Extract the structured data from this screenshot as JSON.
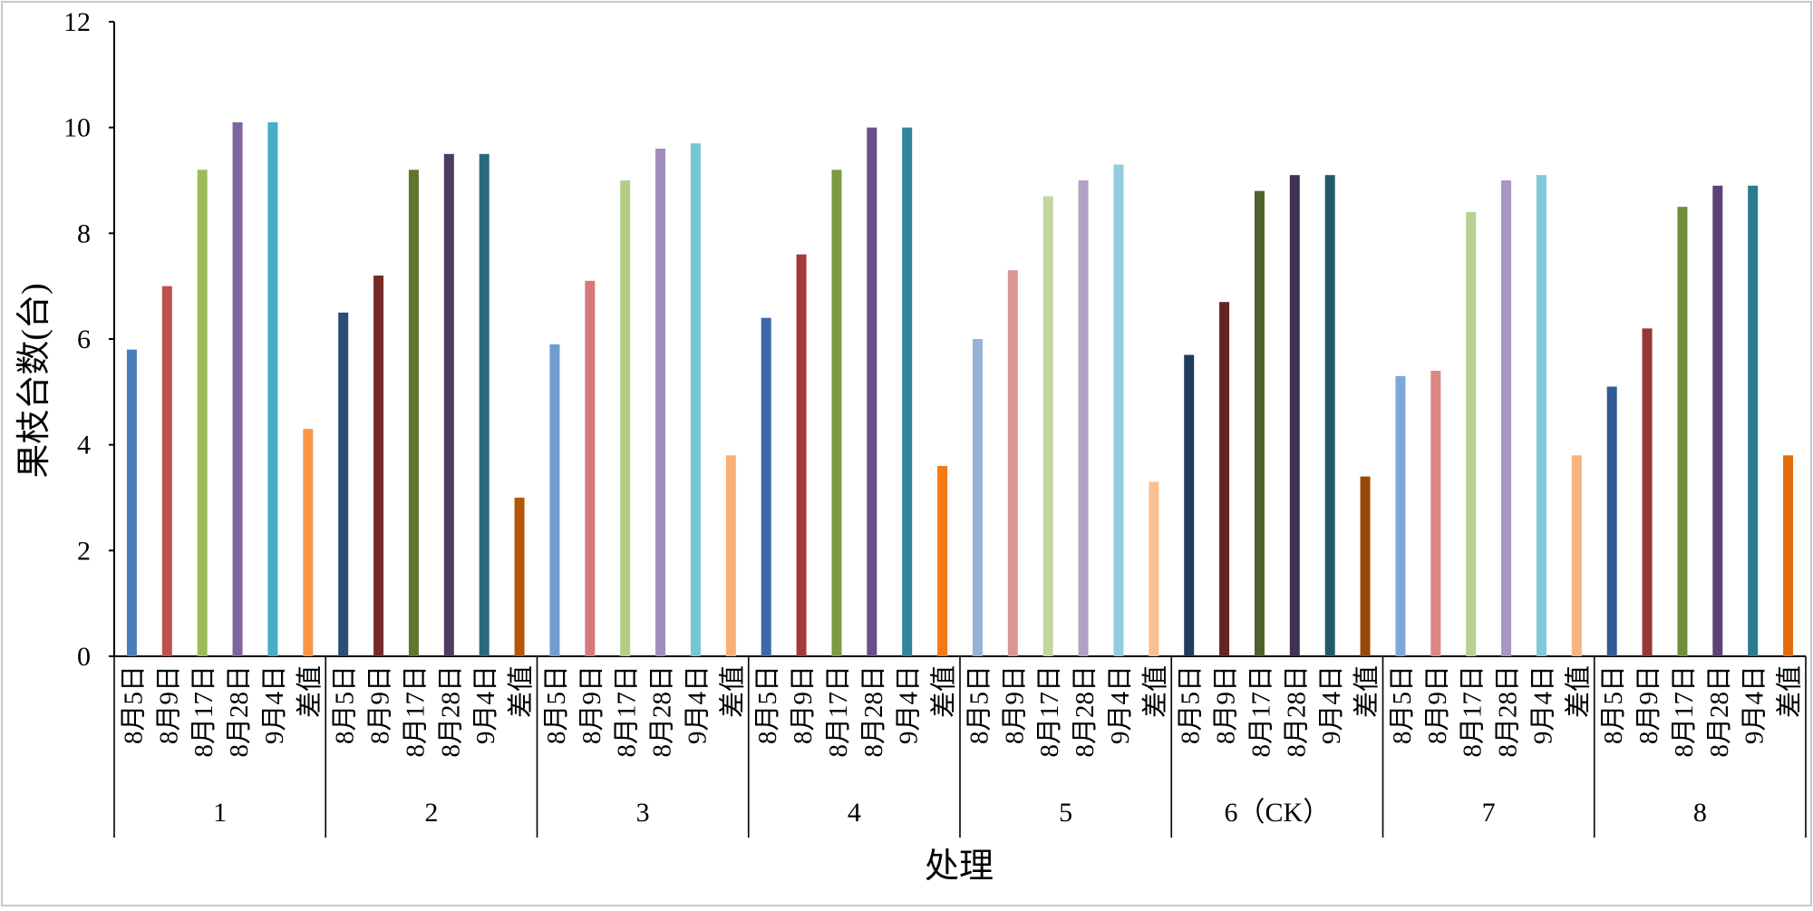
{
  "chart_data": {
    "type": "bar",
    "title": "",
    "xlabel": "处理",
    "ylabel": "果枝台数(台)",
    "ylim": [
      0,
      12
    ],
    "yticks": [
      0,
      2,
      4,
      6,
      8,
      10,
      12
    ],
    "grid": false,
    "legend": "none",
    "categories": [
      "8月5日",
      "8月9日",
      "8月17日",
      "8月28日",
      "9月4日",
      "差值"
    ],
    "groups": [
      {
        "label": "1",
        "values": [
          5.8,
          7.0,
          9.2,
          10.1,
          10.1,
          4.3
        ],
        "colors": [
          "#4a7ebb",
          "#c0504d",
          "#9bbb59",
          "#8064a2",
          "#4bacc6",
          "#f79646"
        ]
      },
      {
        "label": "2",
        "values": [
          6.5,
          7.2,
          9.2,
          9.5,
          9.5,
          3.0
        ],
        "colors": [
          "#2c4d75",
          "#772c2a",
          "#5f7530",
          "#4d3b62",
          "#276a7c",
          "#b65708"
        ]
      },
      {
        "label": "3",
        "values": [
          5.9,
          7.1,
          9.0,
          9.6,
          9.7,
          3.8
        ],
        "colors": [
          "#6f9dd3",
          "#d47b79",
          "#b3cd87",
          "#a08dbb",
          "#73c5d8",
          "#f9b074"
        ]
      },
      {
        "label": "4",
        "values": [
          6.4,
          7.6,
          9.2,
          10.0,
          10.0,
          3.6
        ],
        "colors": [
          "#3a6aa8",
          "#a33b38",
          "#7b9a44",
          "#674f8a",
          "#31859c",
          "#f47a16"
        ]
      },
      {
        "label": "5",
        "values": [
          6.0,
          7.3,
          8.7,
          9.0,
          9.3,
          3.3
        ],
        "colors": [
          "#95b3d7",
          "#d99694",
          "#c3d69b",
          "#b2a1c7",
          "#93cddd",
          "#fac090"
        ]
      },
      {
        "label": "6（CK）",
        "values": [
          5.7,
          6.7,
          8.8,
          9.1,
          9.1,
          3.4
        ],
        "colors": [
          "#1f3b5e",
          "#632523",
          "#4f6228",
          "#3f3151",
          "#215968",
          "#984807"
        ]
      },
      {
        "label": "7",
        "values": [
          5.3,
          5.4,
          8.4,
          9.0,
          9.1,
          3.8
        ],
        "colors": [
          "#7da7d9",
          "#dc8784",
          "#b7d093",
          "#a795c3",
          "#80c8dc",
          "#f9b47e"
        ]
      },
      {
        "label": "8",
        "values": [
          5.1,
          6.2,
          8.5,
          8.9,
          8.9,
          3.8
        ],
        "colors": [
          "#2f5b96",
          "#953735",
          "#6f8f38",
          "#5a4378",
          "#2c7a8f",
          "#e46c0a"
        ]
      }
    ]
  }
}
